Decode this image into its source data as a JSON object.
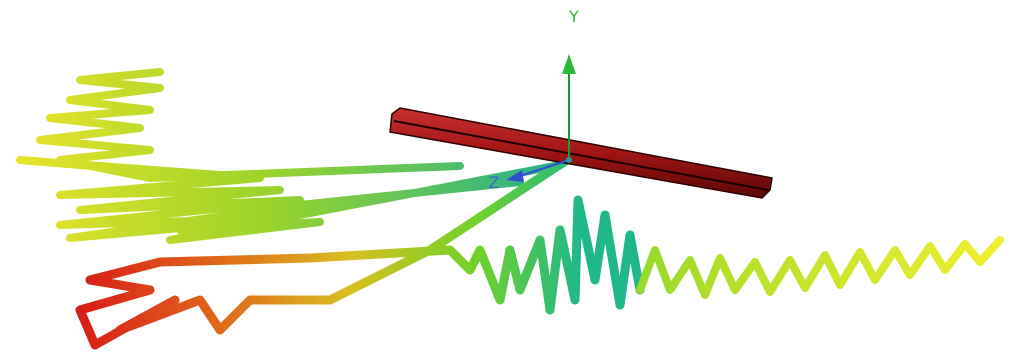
{
  "axes": {
    "y_label": "Y",
    "z_label": "Z"
  }
}
